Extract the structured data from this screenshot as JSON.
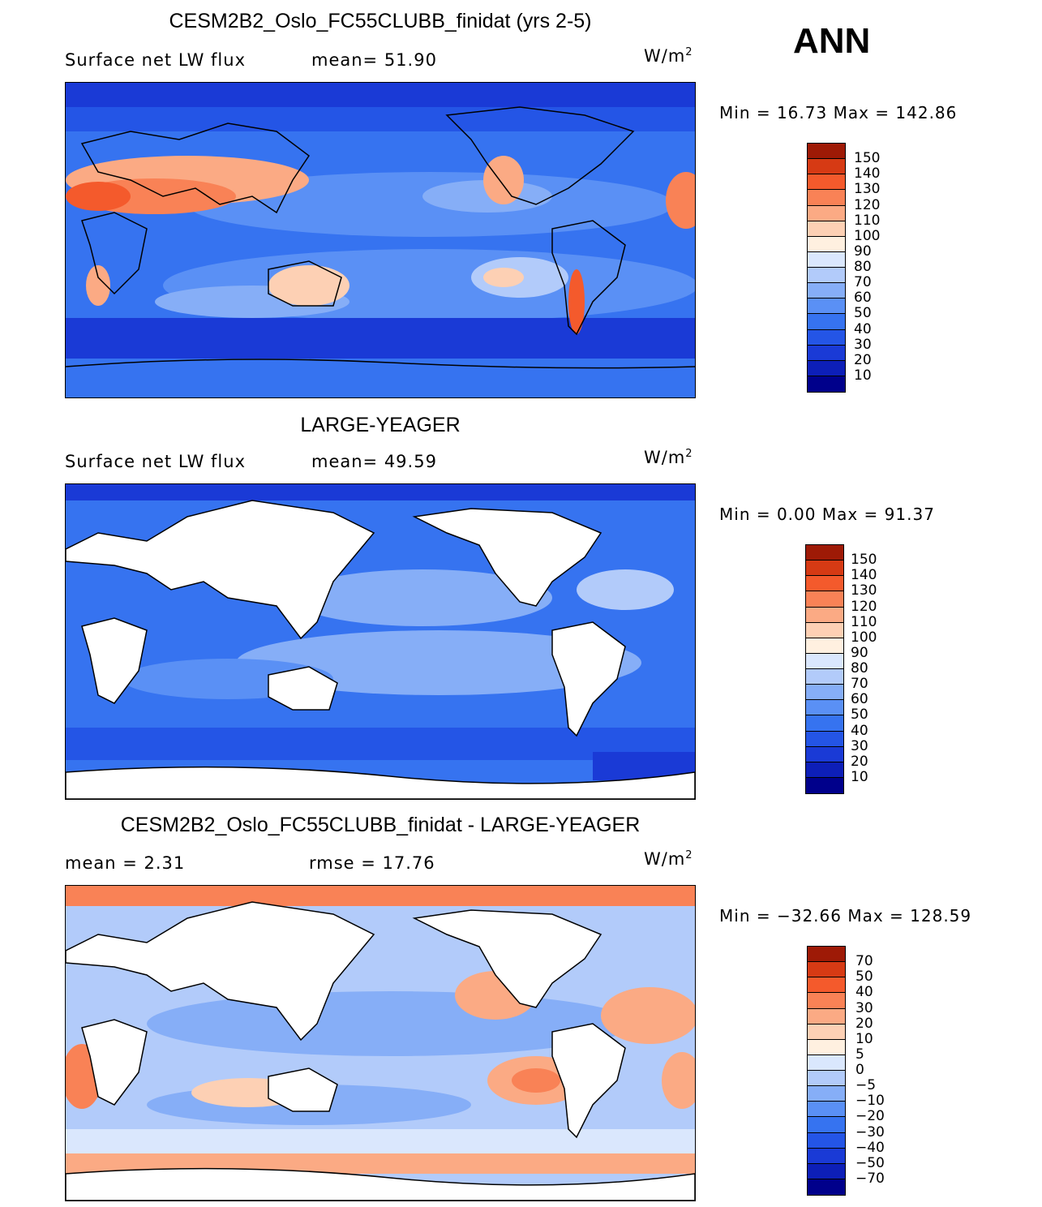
{
  "season": "ANN",
  "colors": {
    "abs_scale": [
      "#00008b",
      "#0d1fb8",
      "#1a3ad6",
      "#2455e6",
      "#3673f0",
      "#5a90f5",
      "#86aef7",
      "#b2cbfa",
      "#dae7fd",
      "#fff0e0",
      "#fdd0b4",
      "#fbaa84",
      "#f98256",
      "#f45a2c",
      "#d63a14",
      "#9e1a06"
    ],
    "diff_scale": [
      "#00008b",
      "#0d1fb8",
      "#1a3ad6",
      "#2455e6",
      "#3673f0",
      "#5a90f5",
      "#86aef7",
      "#b2cbfa",
      "#dae7fd",
      "#fff0e0",
      "#fdd0b4",
      "#fbaa84",
      "#f98256",
      "#f45a2c",
      "#d63a14",
      "#9e1a06"
    ]
  },
  "panels": [
    {
      "title": "CESM2B2_Oslo_FC55CLUBB_finidat (yrs 2-5)",
      "left_text": "Surface net LW flux",
      "stat_text": "mean=   51.90",
      "units": "W/m",
      "units_sup": "2",
      "minmax": "Min =   16.73 Max =  142.86",
      "colorbar_labels": [
        "150",
        "140",
        "130",
        "120",
        "110",
        "100",
        "90",
        "80",
        "70",
        "60",
        "50",
        "40",
        "30",
        "20",
        "10"
      ]
    },
    {
      "title": "LARGE-YEAGER",
      "left_text": "Surface net LW flux",
      "stat_text": "mean=   49.59",
      "units": "W/m",
      "units_sup": "2",
      "minmax": "Min =    0.00 Max =   91.37",
      "colorbar_labels": [
        "150",
        "140",
        "130",
        "120",
        "110",
        "100",
        "90",
        "80",
        "70",
        "60",
        "50",
        "40",
        "30",
        "20",
        "10"
      ]
    },
    {
      "title": "CESM2B2_Oslo_FC55CLUBB_finidat - LARGE-YEAGER",
      "left_text": "mean =     2.31",
      "stat_text": "rmse =    17.76",
      "units": "W/m",
      "units_sup": "2",
      "minmax": "Min = −32.66 Max =  128.59",
      "colorbar_labels": [
        "70",
        "50",
        "40",
        "30",
        "20",
        "10",
        "5",
        "0",
        "−5",
        "−10",
        "−20",
        "−30",
        "−40",
        "−50",
        "−70"
      ]
    }
  ]
}
